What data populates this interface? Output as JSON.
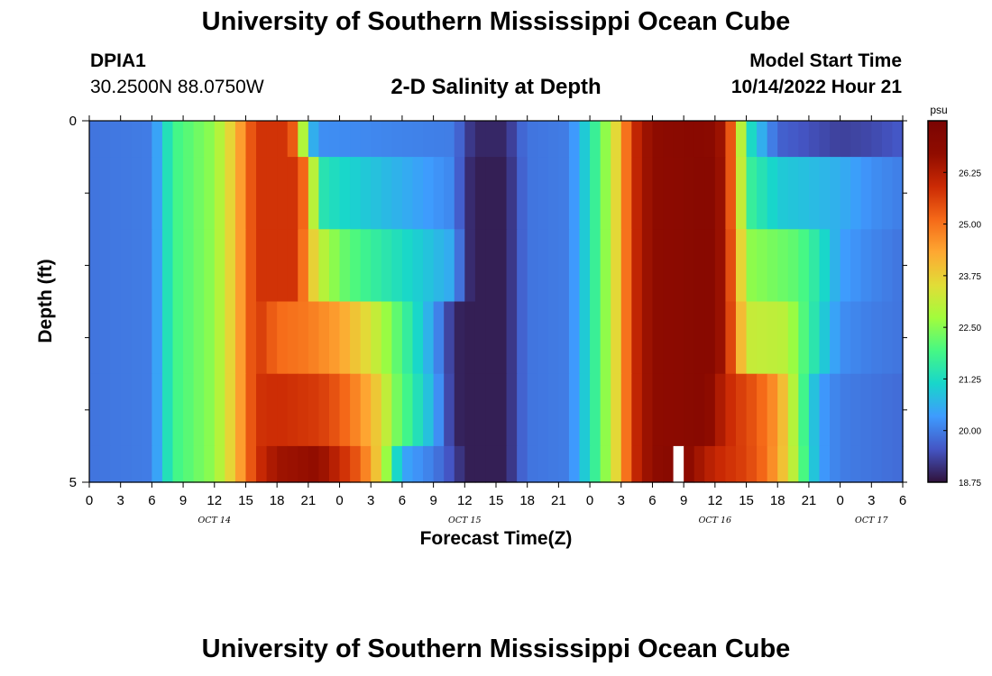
{
  "header": {
    "title": "University of Southern Mississippi Ocean Cube",
    "station_name": "DPIA1",
    "station_coords": "30.2500N  88.0750W",
    "plot_title": "2-D Salinity at Depth",
    "model_start_label": "Model Start Time",
    "model_start_value": "10/14/2022 Hour 21"
  },
  "footer": {
    "title": "University of Southern Mississippi Ocean Cube"
  },
  "chart_data": {
    "type": "heatmap",
    "title": "2-D Salinity at Depth",
    "xlabel": "Forecast Time(Z)",
    "ylabel": "Depth (ft)",
    "x_tick_labels": [
      "0",
      "3",
      "6",
      "9",
      "12",
      "15",
      "18",
      "21",
      "0",
      "3",
      "6",
      "9",
      "12",
      "15",
      "18",
      "21",
      "0",
      "3",
      "6",
      "9",
      "12",
      "15",
      "18",
      "21",
      "0",
      "3",
      "6"
    ],
    "x_range_hours": [
      0,
      78
    ],
    "date_labels": [
      {
        "label": "OCT 14",
        "hour": 12
      },
      {
        "label": "OCT 15",
        "hour": 36
      },
      {
        "label": "OCT 16",
        "hour": 60
      },
      {
        "label": "OCT 17",
        "hour": 75
      }
    ],
    "y_tick_labels": [
      {
        "depth": 0,
        "label": "0"
      },
      {
        "depth": 5,
        "label": "5"
      }
    ],
    "y_range_ft": [
      0,
      5
    ],
    "colorbar": {
      "unit": "psu",
      "min": 18.75,
      "max": 27.5,
      "tick_labels": [
        "18.75",
        "20.00",
        "21.25",
        "22.50",
        "23.75",
        "25.00",
        "26.25"
      ],
      "colors": [
        "#30123b",
        "#4455c4",
        "#3e9bfe",
        "#18d6cb",
        "#46f884",
        "#a2fc3c",
        "#e1dd37",
        "#fea832",
        "#f56918",
        "#cb2a04",
        "#900c00",
        "#7a0403"
      ]
    },
    "depth_layers": [
      {
        "top": 0.0,
        "bottom": 0.5
      },
      {
        "top": 0.5,
        "bottom": 1.5
      },
      {
        "top": 1.5,
        "bottom": 2.5
      },
      {
        "top": 2.5,
        "bottom": 3.5
      },
      {
        "top": 3.5,
        "bottom": 4.5
      },
      {
        "top": 4.5,
        "bottom": 5.0
      }
    ],
    "salinity_knots": [
      [
        [
          0,
          19.9
        ],
        [
          6,
          20.0
        ],
        [
          8,
          21.8
        ],
        [
          12,
          22.6
        ],
        [
          14,
          24.0
        ],
        [
          16,
          25.8
        ],
        [
          19,
          25.8
        ],
        [
          20,
          24.8
        ],
        [
          21,
          21.0
        ],
        [
          22,
          20.2
        ],
        [
          35,
          20.0
        ],
        [
          36,
          19.4
        ],
        [
          37,
          19.0
        ],
        [
          40,
          19.0
        ],
        [
          41,
          19.6
        ],
        [
          42,
          19.9
        ],
        [
          46,
          20.0
        ],
        [
          48,
          21.3
        ],
        [
          50,
          23.0
        ],
        [
          51,
          24.2
        ],
        [
          52,
          25.8
        ],
        [
          54,
          26.8
        ],
        [
          58,
          27.0
        ],
        [
          60,
          26.9
        ],
        [
          61,
          26.2
        ],
        [
          62,
          24.5
        ],
        [
          63,
          21.5
        ],
        [
          66,
          19.7
        ],
        [
          72,
          19.3
        ],
        [
          75,
          19.4
        ],
        [
          78,
          19.6
        ]
      ],
      [
        [
          0,
          19.9
        ],
        [
          6,
          20.0
        ],
        [
          8,
          21.8
        ],
        [
          12,
          22.6
        ],
        [
          14,
          24.0
        ],
        [
          16,
          25.8
        ],
        [
          20,
          25.8
        ],
        [
          21,
          24.5
        ],
        [
          22,
          21.5
        ],
        [
          24,
          21.2
        ],
        [
          35,
          20.1
        ],
        [
          36,
          19.2
        ],
        [
          37,
          18.9
        ],
        [
          40,
          18.9
        ],
        [
          41,
          19.5
        ],
        [
          42,
          19.9
        ],
        [
          46,
          20.0
        ],
        [
          48,
          21.3
        ],
        [
          50,
          23.0
        ],
        [
          51,
          24.2
        ],
        [
          52,
          25.8
        ],
        [
          54,
          26.8
        ],
        [
          59,
          27.0
        ],
        [
          60,
          27.0
        ],
        [
          61,
          26.2
        ],
        [
          62,
          24.5
        ],
        [
          63,
          21.8
        ],
        [
          66,
          21.0
        ],
        [
          72,
          20.6
        ],
        [
          75,
          20.2
        ],
        [
          78,
          20.0
        ]
      ],
      [
        [
          0,
          19.9
        ],
        [
          6,
          20.0
        ],
        [
          8,
          21.8
        ],
        [
          12,
          22.6
        ],
        [
          14,
          24.0
        ],
        [
          16,
          25.8
        ],
        [
          20,
          25.8
        ],
        [
          21,
          24.2
        ],
        [
          22,
          23.2
        ],
        [
          24,
          22.3
        ],
        [
          27,
          21.7
        ],
        [
          35,
          20.5
        ],
        [
          36,
          19.2
        ],
        [
          37,
          18.9
        ],
        [
          40,
          18.9
        ],
        [
          41,
          19.5
        ],
        [
          42,
          19.9
        ],
        [
          46,
          20.0
        ],
        [
          48,
          21.3
        ],
        [
          50,
          23.0
        ],
        [
          51,
          24.2
        ],
        [
          52,
          25.8
        ],
        [
          54,
          26.8
        ],
        [
          59,
          27.0
        ],
        [
          60,
          27.0
        ],
        [
          61,
          26.2
        ],
        [
          62,
          24.7
        ],
        [
          63,
          22.6
        ],
        [
          68,
          22.1
        ],
        [
          70,
          21.4
        ],
        [
          72,
          20.4
        ],
        [
          75,
          20.1
        ],
        [
          78,
          19.9
        ]
      ],
      [
        [
          0,
          19.9
        ],
        [
          6,
          20.0
        ],
        [
          8,
          21.8
        ],
        [
          12,
          22.6
        ],
        [
          14,
          24.0
        ],
        [
          16,
          25.8
        ],
        [
          18,
          25.1
        ],
        [
          21,
          24.9
        ],
        [
          24,
          24.4
        ],
        [
          27,
          23.4
        ],
        [
          29,
          22.4
        ],
        [
          31,
          21.4
        ],
        [
          33,
          20.4
        ],
        [
          34,
          19.7
        ],
        [
          35,
          19.0
        ],
        [
          36,
          18.9
        ],
        [
          40,
          18.9
        ],
        [
          41,
          19.5
        ],
        [
          42,
          19.9
        ],
        [
          46,
          20.0
        ],
        [
          48,
          21.3
        ],
        [
          50,
          23.0
        ],
        [
          51,
          24.2
        ],
        [
          52,
          25.8
        ],
        [
          54,
          26.8
        ],
        [
          59,
          27.0
        ],
        [
          60,
          27.0
        ],
        [
          61,
          26.2
        ],
        [
          62,
          24.9
        ],
        [
          63,
          23.2
        ],
        [
          67,
          23.0
        ],
        [
          68,
          22.3
        ],
        [
          70,
          21.2
        ],
        [
          72,
          20.2
        ],
        [
          75,
          20.0
        ],
        [
          78,
          19.9
        ]
      ],
      [
        [
          0,
          19.9
        ],
        [
          6,
          20.0
        ],
        [
          8,
          21.8
        ],
        [
          12,
          22.6
        ],
        [
          14,
          24.0
        ],
        [
          16,
          25.8
        ],
        [
          18,
          25.9
        ],
        [
          22,
          25.7
        ],
        [
          24,
          25.3
        ],
        [
          26,
          24.6
        ],
        [
          28,
          23.6
        ],
        [
          29,
          22.6
        ],
        [
          31,
          21.6
        ],
        [
          33,
          20.6
        ],
        [
          34,
          19.8
        ],
        [
          35,
          19.0
        ],
        [
          36,
          18.9
        ],
        [
          40,
          18.9
        ],
        [
          41,
          19.5
        ],
        [
          42,
          19.9
        ],
        [
          46,
          20.0
        ],
        [
          48,
          21.3
        ],
        [
          50,
          23.0
        ],
        [
          51,
          24.2
        ],
        [
          52,
          25.8
        ],
        [
          54,
          26.8
        ],
        [
          59,
          27.0
        ],
        [
          60,
          26.6
        ],
        [
          61,
          26.0
        ],
        [
          64,
          25.3
        ],
        [
          66,
          24.5
        ],
        [
          67,
          23.5
        ],
        [
          68,
          22.4
        ],
        [
          69,
          21.3
        ],
        [
          70,
          20.4
        ],
        [
          72,
          20.0
        ],
        [
          75,
          19.9
        ],
        [
          78,
          19.8
        ]
      ],
      [
        [
          0,
          19.9
        ],
        [
          6,
          20.0
        ],
        [
          8,
          21.8
        ],
        [
          12,
          22.6
        ],
        [
          14,
          24.0
        ],
        [
          16,
          25.8
        ],
        [
          18,
          26.5
        ],
        [
          22,
          26.7
        ],
        [
          24,
          26.0
        ],
        [
          26,
          25.2
        ],
        [
          28,
          23.5
        ],
        [
          29,
          21.8
        ],
        [
          30,
          20.5
        ],
        [
          33,
          20.0
        ],
        [
          35,
          19.4
        ],
        [
          36,
          18.9
        ],
        [
          40,
          18.9
        ],
        [
          41,
          19.5
        ],
        [
          42,
          19.9
        ],
        [
          46,
          20.0
        ],
        [
          48,
          21.3
        ],
        [
          50,
          23.0
        ],
        [
          51,
          24.2
        ],
        [
          52,
          25.8
        ],
        [
          54,
          26.8
        ],
        [
          56,
          27.0
        ],
        [
          57,
          27.0
        ],
        [
          58,
          26.6
        ],
        [
          60,
          26.0
        ],
        [
          63,
          25.6
        ],
        [
          65,
          25.0
        ],
        [
          66,
          24.3
        ],
        [
          67,
          23.6
        ],
        [
          68,
          22.5
        ],
        [
          69,
          21.4
        ],
        [
          70,
          20.4
        ],
        [
          72,
          20.0
        ],
        [
          75,
          19.9
        ],
        [
          78,
          19.8
        ]
      ]
    ],
    "missing_cells": [
      {
        "hour": 56,
        "layer": 5
      }
    ]
  }
}
